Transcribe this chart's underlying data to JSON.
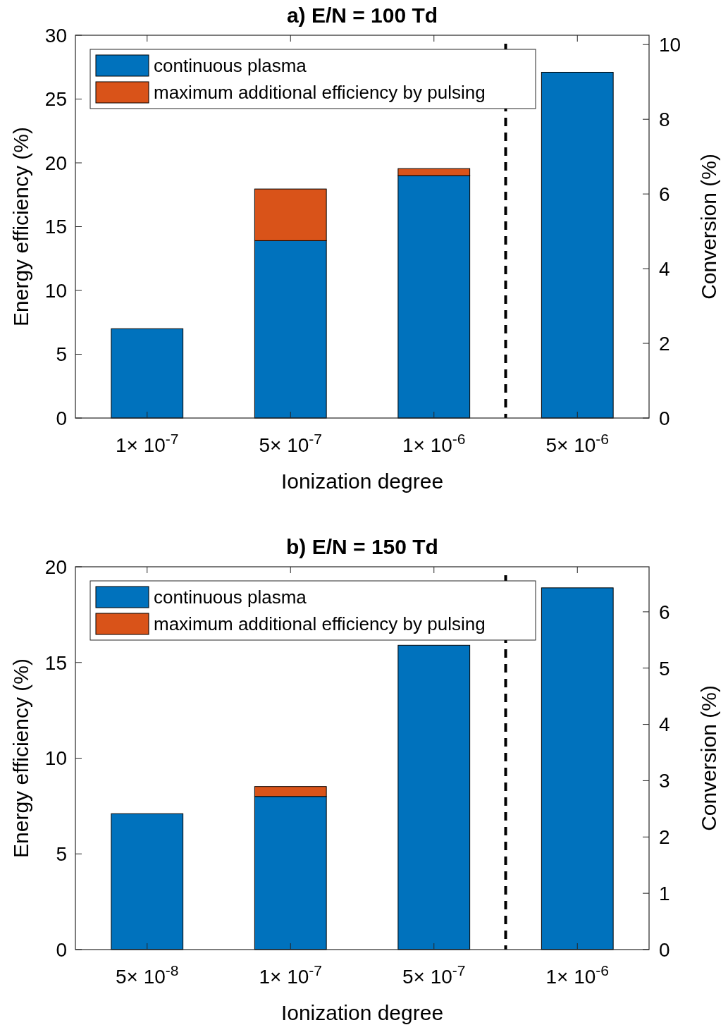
{
  "chart_data": [
    {
      "type": "bar",
      "title": "a) E/N = 100 Td",
      "xlabel": "Ionization degree",
      "ylabel": "Energy efficiency (%)",
      "y2label": "Conversion (%)",
      "categories": [
        "1× 10$^{-7}$",
        "5× 10$^{-7}$",
        "1× 10$^{-6}$",
        "5× 10$^{-6}$"
      ],
      "stacked": true,
      "series": [
        {
          "name": "continuous plasma",
          "color": "#0072bd",
          "values": [
            7.0,
            13.9,
            19.0,
            27.1
          ]
        },
        {
          "name": "maximum additional efficiency by pulsing",
          "color": "#d95319",
          "values": [
            0,
            4.05,
            0.55,
            0
          ]
        }
      ],
      "ylim": [
        0,
        30
      ],
      "yticks": [
        0,
        5,
        10,
        15,
        20,
        25,
        30
      ],
      "y2lim": [
        0,
        10.25
      ],
      "y2ticks": [
        0,
        2,
        4,
        6,
        8,
        10
      ],
      "legend": "top left",
      "grid": false
    },
    {
      "type": "bar",
      "title": "b) E/N = 150 Td",
      "xlabel": "Ionization degree",
      "ylabel": "Energy efficiency (%)",
      "y2label": "Conversion (%)",
      "categories": [
        "5× 10$^{-8}$",
        "1× 10$^{-7}$",
        "5× 10$^{-7}$",
        "1× 10$^{-6}$"
      ],
      "stacked": true,
      "series": [
        {
          "name": "continuous plasma",
          "color": "#0072bd",
          "values": [
            7.1,
            8.0,
            15.9,
            18.9
          ]
        },
        {
          "name": "maximum additional efficiency by pulsing",
          "color": "#d95319",
          "values": [
            0,
            0.52,
            0,
            0
          ]
        }
      ],
      "ylim": [
        0,
        20
      ],
      "yticks": [
        0,
        5,
        10,
        15,
        20
      ],
      "y2lim": [
        0,
        6.8
      ],
      "y2ticks": [
        0,
        1,
        2,
        3,
        4,
        5,
        6
      ],
      "legend": "top left",
      "grid": false
    }
  ]
}
